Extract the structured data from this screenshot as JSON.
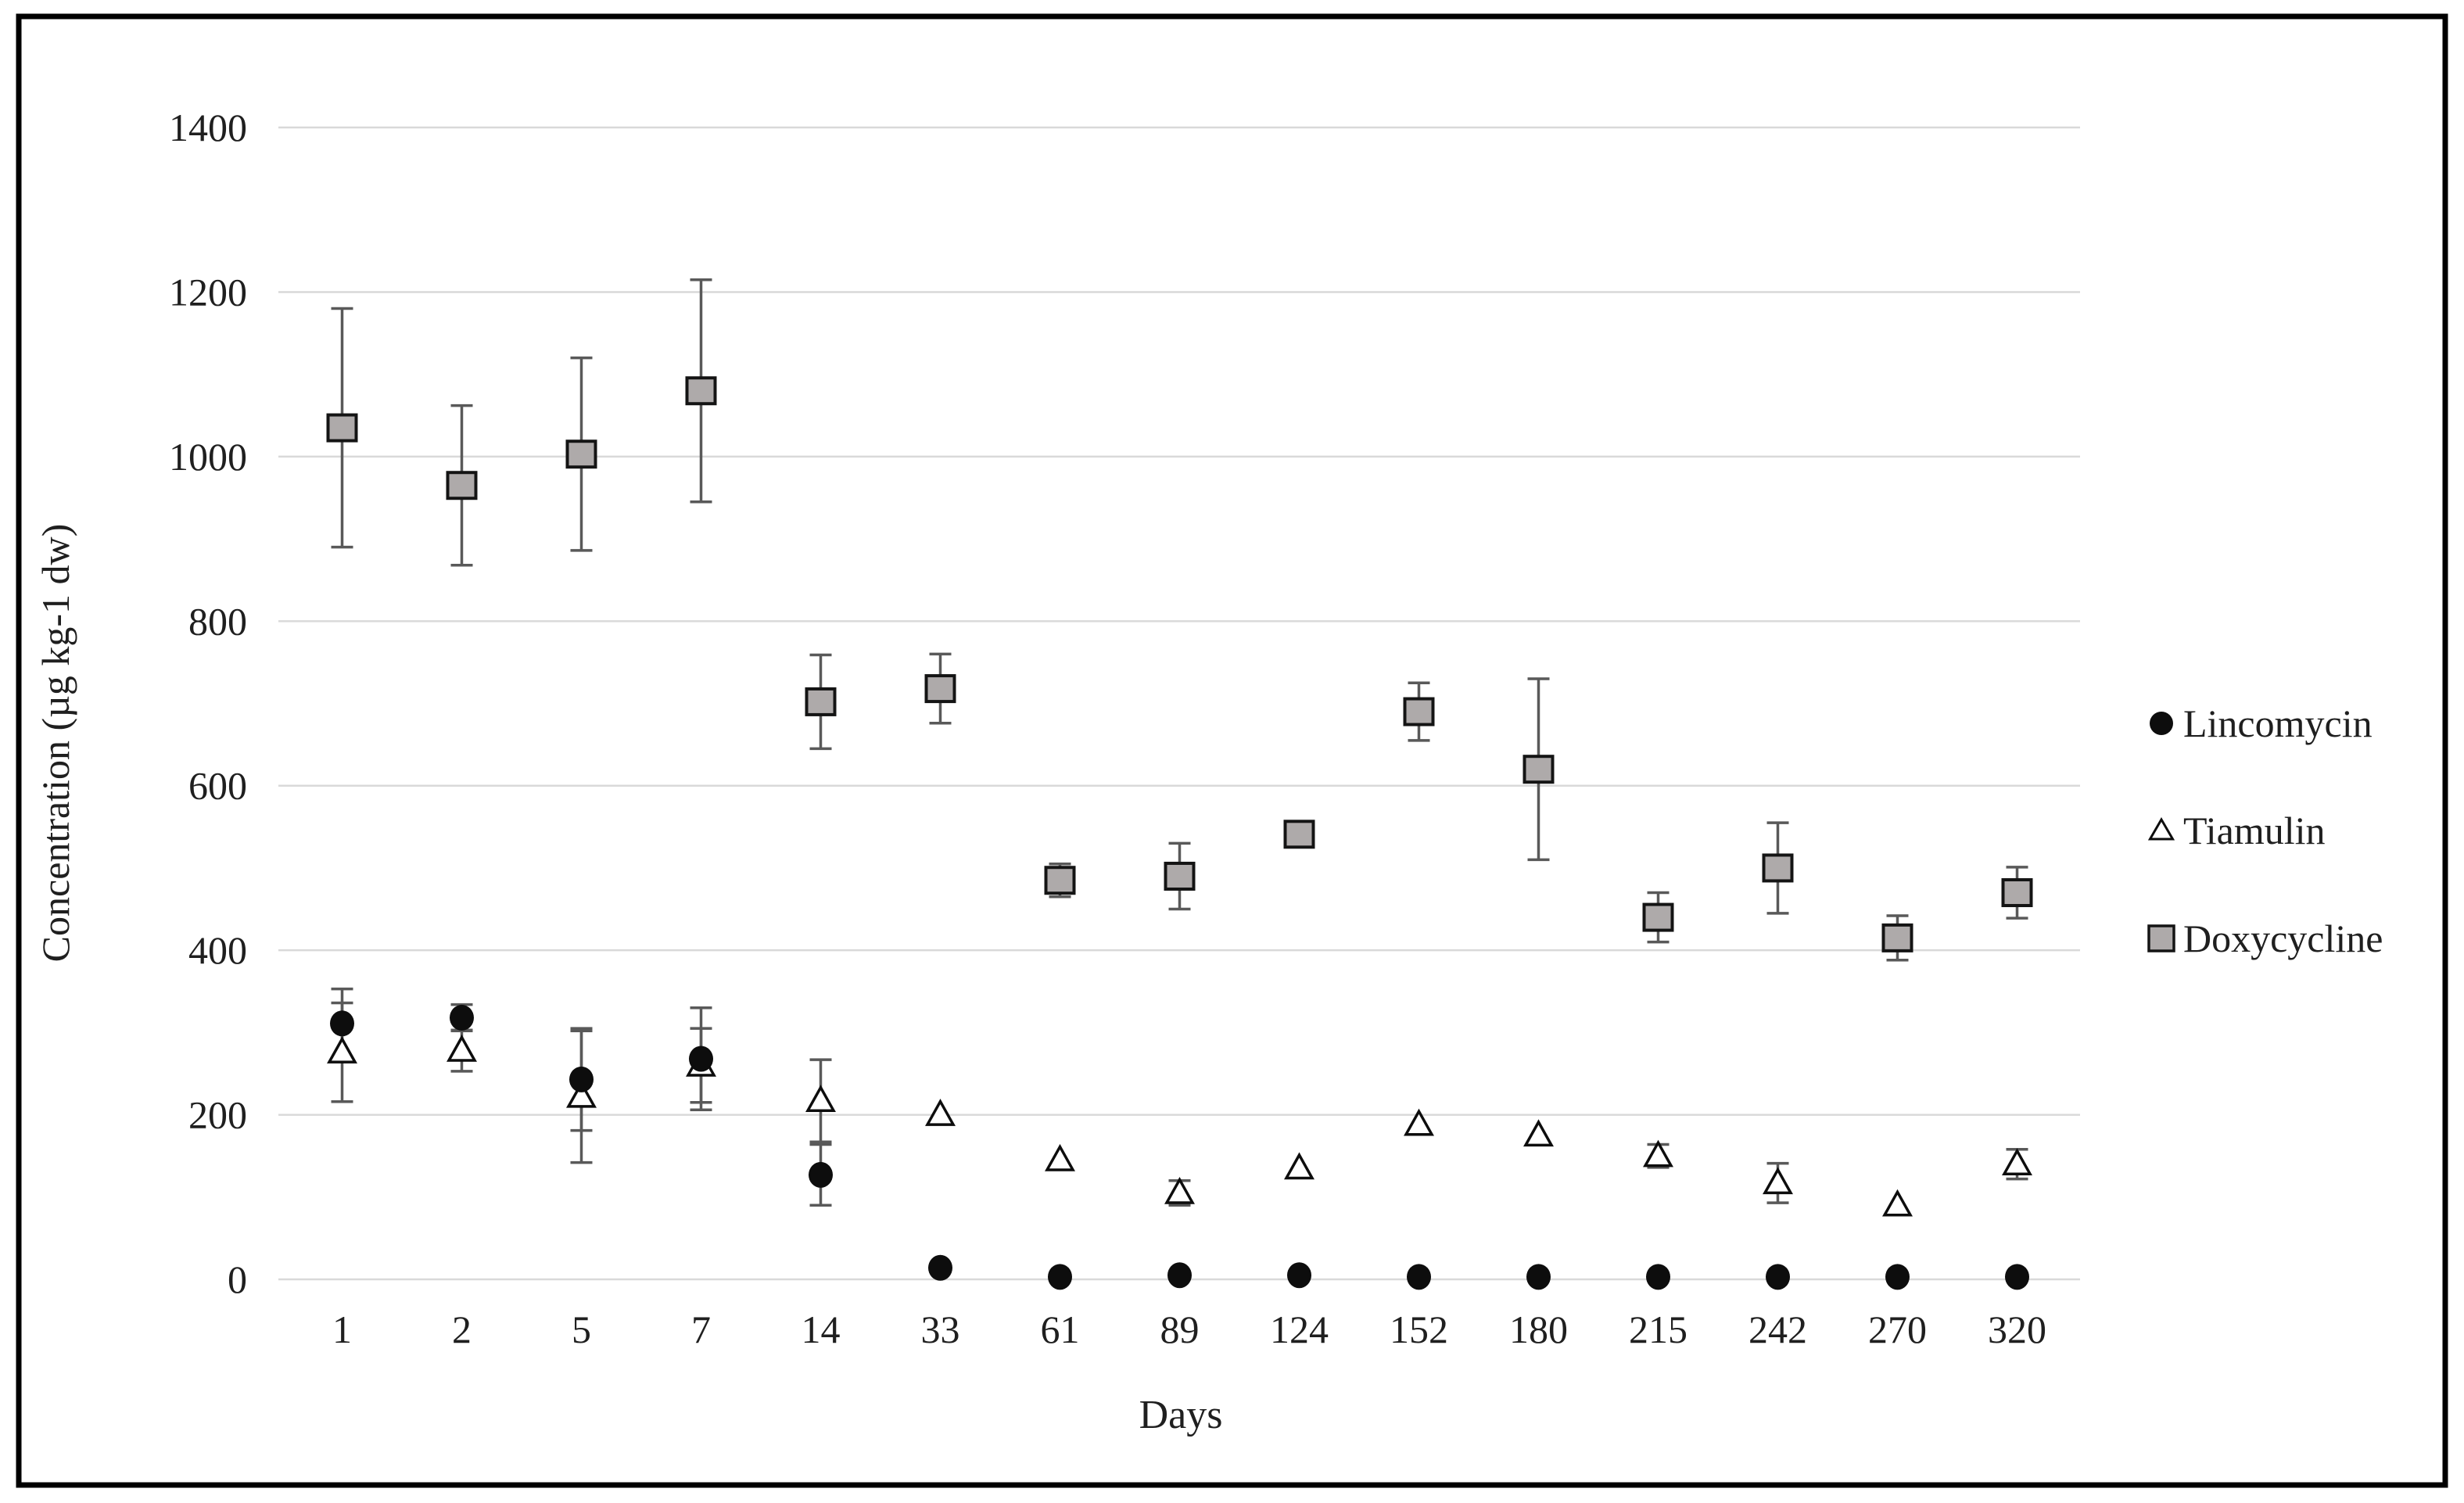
{
  "chart_data": {
    "type": "scatter",
    "title": "",
    "xlabel": "Days",
    "ylabel": "Concentration (µg kg-1 dw)",
    "ylim": [
      0,
      1400
    ],
    "ytick_step": 200,
    "yticks": [
      "0",
      "200",
      "400",
      "600",
      "800",
      "1000",
      "1200",
      "1400"
    ],
    "categories": [
      "1",
      "2",
      "5",
      "7",
      "14",
      "33",
      "61",
      "89",
      "124",
      "152",
      "180",
      "215",
      "242",
      "270",
      "320"
    ],
    "grid": "horizontal-only",
    "legend_position": "right-middle",
    "error_bars": true,
    "series": [
      {
        "name": "Lincomycin",
        "marker": "filled-circle",
        "values": [
          311,
          318,
          243,
          268,
          127,
          14,
          3,
          5,
          5,
          3,
          3,
          3,
          3,
          3,
          3
        ],
        "errors": [
          42,
          16,
          62,
          62,
          37,
          0,
          0,
          0,
          0,
          0,
          0,
          0,
          0,
          0,
          0
        ]
      },
      {
        "name": "Tiamulin",
        "marker": "open-triangle",
        "values": [
          276,
          278,
          222,
          260,
          217,
          200,
          145,
          105,
          135,
          188,
          175,
          150,
          117,
          90,
          140
        ],
        "errors": [
          60,
          25,
          80,
          45,
          50,
          0,
          0,
          15,
          0,
          0,
          0,
          14,
          24,
          0,
          18
        ]
      },
      {
        "name": "Doxycycline",
        "marker": "filled-square",
        "values": [
          1035,
          965,
          1003,
          1080,
          702,
          718,
          485,
          490,
          541,
          690,
          620,
          440,
          500,
          415,
          470
        ],
        "errors": [
          145,
          97,
          117,
          135,
          57,
          42,
          20,
          40,
          0,
          35,
          110,
          30,
          55,
          27,
          31
        ]
      }
    ],
    "colors": {
      "marker_black": "#0d0d0d",
      "square_fill": "#aeaaaa",
      "square_stroke": "#141414",
      "triangle_fill": "#ffffff",
      "error_bar": "#595959",
      "gridline": "#d9d9d9",
      "text": "#1f1f1f",
      "frame_border": "#000000",
      "background": "#ffffff"
    }
  }
}
